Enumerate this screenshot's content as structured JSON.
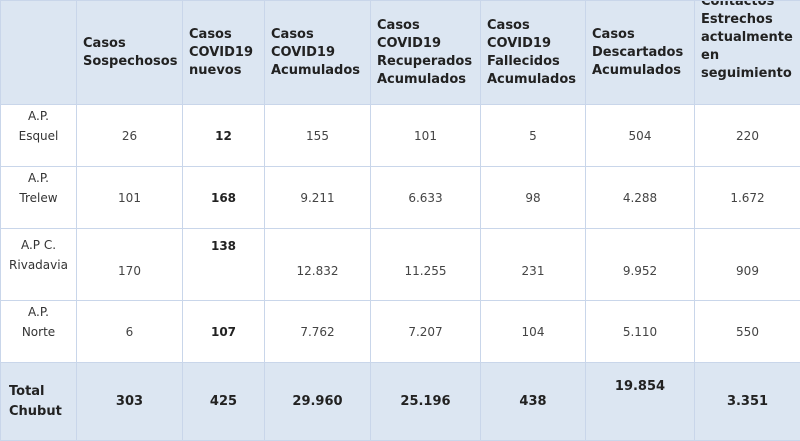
{
  "headers": [
    "",
    "Casos\nSospechosos",
    "Casos\nCOVID19\nnuevos",
    "Casos\nCOVID19\nAcumulados",
    "Casos\nCOVID19\nRecuperados\nAcumulados",
    "Casos\nCOVID19\nFallecidos\nAcumulados",
    "Casos\nDescartados\nAcumulados",
    "Contactos\nEstrechos\nactualmente\nen\nseguimiento"
  ],
  "rows": [
    {
      "label": "A.P.\nEsquel",
      "values": [
        "26",
        "12",
        "155",
        "101",
        "5",
        "504",
        "220"
      ]
    },
    {
      "label": "A.P.\nTrelew",
      "values": [
        "101",
        "168",
        "9.211",
        "6.633",
        "98",
        "4.288",
        "1.672"
      ]
    },
    {
      "label": "A.P C.\nRivadavia",
      "values": [
        "170",
        "138",
        "12.832",
        "11.255",
        "231",
        "9.952",
        "909"
      ]
    },
    {
      "label": "A.P.\nNorte",
      "values": [
        "6",
        "107",
        "7.762",
        "7.207",
        "104",
        "5.110",
        "550"
      ]
    }
  ],
  "total": {
    "label": "Total\nChubut",
    "values": [
      "303",
      "425",
      "29.960",
      "25.196",
      "438",
      "19.854",
      "3.351"
    ]
  }
}
